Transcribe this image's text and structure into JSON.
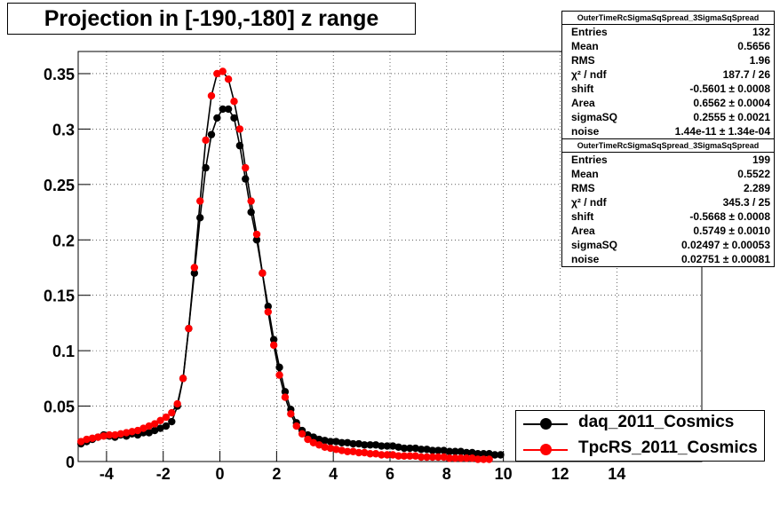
{
  "title": "Projection in [-190,-180] z range",
  "colors": {
    "series1": "#000000",
    "series2": "#ff0000",
    "fit": "#000000"
  },
  "stats": [
    {
      "name": "OuterTimeRcSigmaSqSpread_3SigmaSqSpread",
      "rows": [
        {
          "label": "Entries",
          "value": "132"
        },
        {
          "label": "Mean",
          "value": "0.5656"
        },
        {
          "label": "RMS",
          "value": "1.96"
        },
        {
          "label": "χ² / ndf",
          "value": "187.7 / 26"
        },
        {
          "label": "shift",
          "value": "-0.5601 ± 0.0008"
        },
        {
          "label": "Area",
          "value": "0.6562 ± 0.0004"
        },
        {
          "label": "sigmaSQ",
          "value": "0.2555 ± 0.0021"
        },
        {
          "label": "noise",
          "value": "1.44e-11 ± 1.34e-04"
        }
      ]
    },
    {
      "name": "OuterTimeRcSigmaSqSpread_3SigmaSqSpread",
      "rows": [
        {
          "label": "Entries",
          "value": "199"
        },
        {
          "label": "Mean",
          "value": "0.5522"
        },
        {
          "label": "RMS",
          "value": "2.289"
        },
        {
          "label": "χ² / ndf",
          "value": "345.3 / 25"
        },
        {
          "label": "shift",
          "value": "-0.5668 ± 0.0008"
        },
        {
          "label": "Area",
          "value": "0.5749 ± 0.0010"
        },
        {
          "label": "sigmaSQ",
          "value": "0.02497 ± 0.00053"
        },
        {
          "label": "noise",
          "value": "0.02751 ± 0.00081"
        }
      ]
    }
  ],
  "legend": [
    {
      "name": "daq_2011_Cosmics",
      "color": "#000000"
    },
    {
      "name": "TpcRS_2011_Cosmics",
      "color": "#ff0000"
    }
  ],
  "chart_data": {
    "type": "scatter",
    "title": "Projection in [-190,-180] z range",
    "xlim": [
      -5,
      17
    ],
    "ylim": [
      0,
      0.37
    ],
    "x_ticks": [
      -4,
      -2,
      0,
      2,
      4,
      6,
      8,
      10,
      12,
      14
    ],
    "y_ticks": [
      0,
      0.05,
      0.1,
      0.15,
      0.2,
      0.25,
      0.3,
      0.35
    ],
    "y_tick_labels": [
      "0",
      "0.05",
      "0.1",
      "0.15",
      "0.2",
      "0.25",
      "0.3",
      "0.35"
    ],
    "grid": true,
    "legend_position": "bottom-right",
    "series": [
      {
        "name": "daq_2011_Cosmics",
        "color": "#000000",
        "x": [
          -4.9,
          -4.7,
          -4.5,
          -4.3,
          -4.1,
          -3.9,
          -3.7,
          -3.5,
          -3.3,
          -3.1,
          -2.9,
          -2.7,
          -2.5,
          -2.3,
          -2.1,
          -1.9,
          -1.7,
          -1.5,
          -1.3,
          -1.1,
          -0.9,
          -0.7,
          -0.5,
          -0.3,
          -0.1,
          0.1,
          0.3,
          0.5,
          0.7,
          0.9,
          1.1,
          1.3,
          1.5,
          1.7,
          1.9,
          2.1,
          2.3,
          2.5,
          2.7,
          2.9,
          3.1,
          3.3,
          3.5,
          3.7,
          3.9,
          4.1,
          4.3,
          4.5,
          4.7,
          4.9,
          5.1,
          5.3,
          5.5,
          5.7,
          5.9,
          6.1,
          6.3,
          6.5,
          6.7,
          6.9,
          7.1,
          7.3,
          7.5,
          7.7,
          7.9,
          8.1,
          8.3,
          8.5,
          8.7,
          8.9,
          9.1,
          9.3,
          9.5,
          9.7,
          9.9
        ],
        "y": [
          0.016,
          0.018,
          0.02,
          0.022,
          0.024,
          0.023,
          0.022,
          0.024,
          0.023,
          0.025,
          0.024,
          0.026,
          0.026,
          0.028,
          0.03,
          0.032,
          0.036,
          0.05,
          0.075,
          0.12,
          0.17,
          0.22,
          0.265,
          0.295,
          0.31,
          0.318,
          0.318,
          0.31,
          0.285,
          0.255,
          0.225,
          0.2,
          0.17,
          0.14,
          0.11,
          0.085,
          0.063,
          0.047,
          0.035,
          0.028,
          0.024,
          0.022,
          0.02,
          0.019,
          0.018,
          0.018,
          0.017,
          0.017,
          0.016,
          0.016,
          0.015,
          0.015,
          0.015,
          0.014,
          0.014,
          0.014,
          0.013,
          0.012,
          0.012,
          0.012,
          0.011,
          0.011,
          0.01,
          0.01,
          0.01,
          0.009,
          0.009,
          0.009,
          0.008,
          0.008,
          0.007,
          0.007,
          0.007,
          0.006,
          0.006
        ]
      },
      {
        "name": "TpcRS_2011_Cosmics",
        "color": "#ff0000",
        "x": [
          -4.9,
          -4.7,
          -4.5,
          -4.3,
          -4.1,
          -3.9,
          -3.7,
          -3.5,
          -3.3,
          -3.1,
          -2.9,
          -2.7,
          -2.5,
          -2.3,
          -2.1,
          -1.9,
          -1.7,
          -1.5,
          -1.3,
          -1.1,
          -0.9,
          -0.7,
          -0.5,
          -0.3,
          -0.1,
          0.1,
          0.3,
          0.5,
          0.7,
          0.9,
          1.1,
          1.3,
          1.5,
          1.7,
          1.9,
          2.1,
          2.3,
          2.5,
          2.7,
          2.9,
          3.1,
          3.3,
          3.5,
          3.7,
          3.9,
          4.1,
          4.3,
          4.5,
          4.7,
          4.9,
          5.1,
          5.3,
          5.5,
          5.7,
          5.9,
          6.1,
          6.3,
          6.5,
          6.7,
          6.9,
          7.1,
          7.3,
          7.5,
          7.7,
          7.9,
          8.1,
          8.3,
          8.5,
          8.7,
          8.9,
          9.1,
          9.3,
          9.5
        ],
        "y": [
          0.018,
          0.02,
          0.021,
          0.022,
          0.023,
          0.024,
          0.024,
          0.025,
          0.026,
          0.027,
          0.028,
          0.03,
          0.032,
          0.034,
          0.037,
          0.04,
          0.044,
          0.052,
          0.075,
          0.12,
          0.175,
          0.235,
          0.29,
          0.33,
          0.35,
          0.352,
          0.345,
          0.325,
          0.3,
          0.265,
          0.235,
          0.205,
          0.17,
          0.135,
          0.105,
          0.078,
          0.058,
          0.043,
          0.032,
          0.025,
          0.02,
          0.017,
          0.015,
          0.013,
          0.012,
          0.011,
          0.01,
          0.009,
          0.009,
          0.008,
          0.008,
          0.007,
          0.007,
          0.006,
          0.006,
          0.006,
          0.005,
          0.005,
          0.005,
          0.005,
          0.004,
          0.004,
          0.004,
          0.004,
          0.004,
          0.003,
          0.003,
          0.003,
          0.003,
          0.003,
          0.002,
          0.002,
          0.002
        ]
      }
    ]
  }
}
